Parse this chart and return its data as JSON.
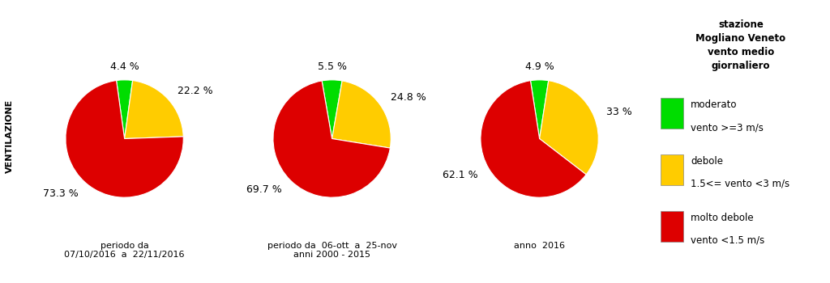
{
  "pies": [
    {
      "values": [
        4.4,
        22.2,
        73.3
      ],
      "colors": [
        "#00dd00",
        "#ffcc00",
        "#dd0000"
      ],
      "labels": [
        "4.4 %",
        "22.2 %",
        "73.3 %"
      ],
      "subtitle_line1": "periodo da",
      "subtitle_line2": "07/10/2016  a  22/11/2016"
    },
    {
      "values": [
        5.5,
        24.8,
        69.7
      ],
      "colors": [
        "#00dd00",
        "#ffcc00",
        "#dd0000"
      ],
      "labels": [
        "5.5 %",
        "24.8 %",
        "69.7 %"
      ],
      "subtitle_line1": "periodo da  06-ott  a  25-nov",
      "subtitle_line2": "anni 2000 - 2015"
    },
    {
      "values": [
        4.9,
        33.0,
        62.1
      ],
      "colors": [
        "#00dd00",
        "#ffcc00",
        "#dd0000"
      ],
      "labels": [
        "4.9 %",
        "33 %",
        "62.1 %"
      ],
      "subtitle_line1": "anno  2016",
      "subtitle_line2": ""
    }
  ],
  "legend_title": "stazione\nMogliano Veneto\nvento medio\ngiornaliero",
  "legend_items": [
    {
      "color": "#00dd00",
      "label1": "moderato",
      "label2": "vento >=3 m/s"
    },
    {
      "color": "#ffcc00",
      "label1": "debole",
      "label2": "1.5<= vento <3 m/s"
    },
    {
      "color": "#dd0000",
      "label1": "molto debole",
      "label2": "vento <1.5 m/s"
    }
  ],
  "y_label": "VENTILAZIONE",
  "background_color": "#ffffff",
  "label_fontsize": 9,
  "subtitle_fontsize": 8
}
